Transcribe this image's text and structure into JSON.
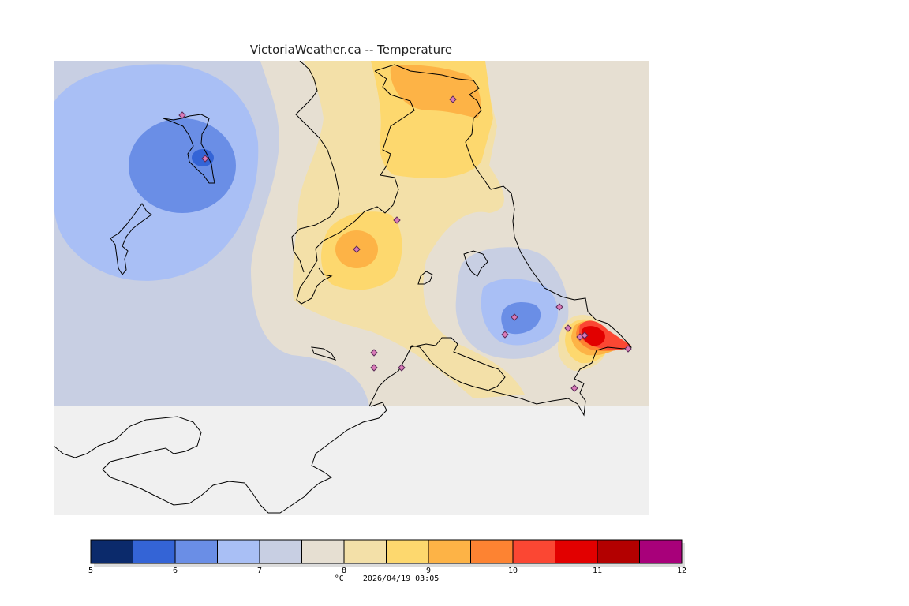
{
  "title": "VictoriaWeather.ca -- Temperature",
  "footer": {
    "unit": "°C",
    "timestamp": "2026/04/19 03:05"
  },
  "colorbar": {
    "min": 5,
    "max": 12,
    "step": 0.5,
    "tick_labels": [
      "5",
      "6",
      "7",
      "8",
      "9",
      "10",
      "11",
      "12"
    ],
    "colors": [
      "#0b2a6b",
      "#3464d6",
      "#6a8ee6",
      "#a9bff5",
      "#c8cfe3",
      "#e6dfd2",
      "#f3e0a8",
      "#fdd86e",
      "#fdb346",
      "#fd8332",
      "#fb4733",
      "#e20000",
      "#b30000",
      "#a8007a"
    ]
  },
  "colors": {
    "background_no_data": "#f0f0f0",
    "coast": "#000000",
    "station_marker_fill": "#d97ab8",
    "station_marker_stroke": "#5b2b58"
  },
  "map": {
    "temperature_field": "contoured air temperature over Victoria region",
    "stations_shown": 16
  }
}
